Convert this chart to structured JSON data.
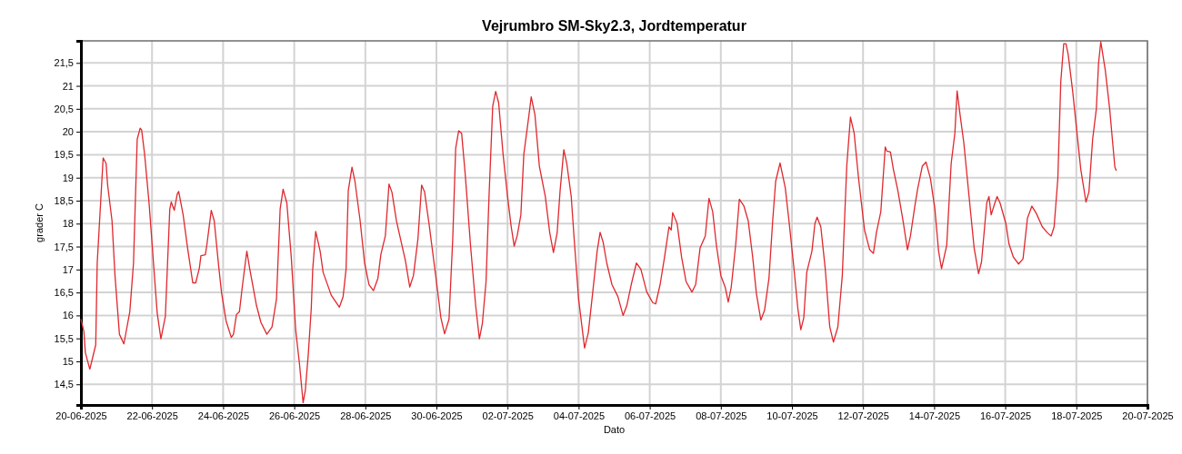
{
  "chart_data": {
    "type": "line",
    "title": "Vejrumbro SM-Sky2.3, Jordtemperatur",
    "xlabel": "Dato",
    "ylabel": "grader C",
    "grid": true,
    "marker": "none",
    "line_style": "solid",
    "xlim": [
      "2025-06-20",
      "2025-07-20"
    ],
    "xticks": [
      {
        "value": "2025-06-20",
        "label": "20-06-2025"
      },
      {
        "value": "2025-06-22",
        "label": "22-06-2025"
      },
      {
        "value": "2025-06-24",
        "label": "24-06-2025"
      },
      {
        "value": "2025-06-26",
        "label": "26-06-2025"
      },
      {
        "value": "2025-06-28",
        "label": "28-06-2025"
      },
      {
        "value": "2025-06-30",
        "label": "30-06-2025"
      },
      {
        "value": "2025-07-02",
        "label": "02-07-2025"
      },
      {
        "value": "2025-07-04",
        "label": "04-07-2025"
      },
      {
        "value": "2025-07-06",
        "label": "06-07-2025"
      },
      {
        "value": "2025-07-08",
        "label": "08-07-2025"
      },
      {
        "value": "2025-07-10",
        "label": "10-07-2025"
      },
      {
        "value": "2025-07-12",
        "label": "12-07-2025"
      },
      {
        "value": "2025-07-14",
        "label": "14-07-2025"
      },
      {
        "value": "2025-07-16",
        "label": "16-07-2025"
      },
      {
        "value": "2025-07-18",
        "label": "18-07-2025"
      },
      {
        "value": "2025-07-20",
        "label": "20-07-2025"
      }
    ],
    "ylim": [
      14.05,
      21.98
    ],
    "yticks": [
      {
        "value": 14.5,
        "label": "14,5"
      },
      15,
      {
        "value": 15.5,
        "label": "15,5"
      },
      16,
      {
        "value": 16.5,
        "label": "16,5"
      },
      17,
      {
        "value": 17.5,
        "label": "17,5"
      },
      18,
      {
        "value": 18.5,
        "label": "18,5"
      },
      19,
      {
        "value": 19.5,
        "label": "19,5"
      },
      20,
      {
        "value": 20.5,
        "label": "20,5"
      },
      21,
      {
        "value": 21.5,
        "label": "21,5"
      }
    ],
    "series": [
      {
        "color": "#e0282e",
        "x": [
          "2025-06-20T00:00",
          "2025-06-20T02:00",
          "2025-06-20T03:00",
          "2025-06-20T06:00",
          "2025-06-20T07:00",
          "2025-06-20T10:00",
          "2025-06-20T11:00",
          "2025-06-20T15:00",
          "2025-06-20T17:00",
          "2025-06-20T18:00",
          "2025-06-20T21:00",
          "2025-06-20T23:00",
          "2025-06-21T02:00",
          "2025-06-21T05:00",
          "2025-06-21T09:00",
          "2025-06-21T11:30",
          "2025-06-21T14:00",
          "2025-06-21T16:00",
          "2025-06-21T17:00",
          "2025-06-21T19:00",
          "2025-06-21T22:00",
          "2025-06-22T01:00",
          "2025-06-22T03:30",
          "2025-06-22T06:00",
          "2025-06-22T09:00",
          "2025-06-22T12:00",
          "2025-06-22T13:00",
          "2025-06-22T15:00",
          "2025-06-22T17:00",
          "2025-06-22T18:00",
          "2025-06-22T21:00",
          "2025-06-23T00:00",
          "2025-06-23T03:30",
          "2025-06-23T05:30",
          "2025-06-23T08:00",
          "2025-06-23T09:00",
          "2025-06-23T12:00",
          "2025-06-23T13:00",
          "2025-06-23T16:00",
          "2025-06-23T18:00",
          "2025-06-23T21:00",
          "2025-06-23T23:00",
          "2025-06-24T02:00",
          "2025-06-24T05:30",
          "2025-06-24T07:00",
          "2025-06-24T09:00",
          "2025-06-24T11:00",
          "2025-06-24T13:00",
          "2025-06-24T16:00",
          "2025-06-24T18:00",
          "2025-06-24T22:30",
          "2025-06-25T01:30",
          "2025-06-25T05:30",
          "2025-06-25T09:00",
          "2025-06-25T12:00",
          "2025-06-25T14:30",
          "2025-06-25T16:30",
          "2025-06-25T19:00",
          "2025-06-25T22:00",
          "2025-06-26T01:00",
          "2025-06-26T03:30",
          "2025-06-26T06:00",
          "2025-06-26T07:30",
          "2025-06-26T09:30",
          "2025-06-26T11:30",
          "2025-06-26T12:30",
          "2025-06-26T14:30",
          "2025-06-26T17:30",
          "2025-06-26T19:30",
          "2025-06-27T01:00",
          "2025-06-27T06:30",
          "2025-06-27T09:00",
          "2025-06-27T11:00",
          "2025-06-27T12:30",
          "2025-06-27T15:00",
          "2025-06-27T17:00",
          "2025-06-27T20:30",
          "2025-06-27T23:30",
          "2025-06-28T02:30",
          "2025-06-28T05:30",
          "2025-06-28T08:30",
          "2025-06-28T10:30",
          "2025-06-28T13:30",
          "2025-06-28T16:00",
          "2025-06-28T18:00",
          "2025-06-28T21:00",
          "2025-06-29T03:00",
          "2025-06-29T06:00",
          "2025-06-29T08:30",
          "2025-06-29T11:30",
          "2025-06-29T14:00",
          "2025-06-29T16:00",
          "2025-06-29T19:00",
          "2025-06-30T00:00",
          "2025-06-30T03:00",
          "2025-06-30T05:30",
          "2025-06-30T08:30",
          "2025-06-30T11:00",
          "2025-06-30T13:00",
          "2025-06-30T15:00",
          "2025-06-30T17:00",
          "2025-06-30T19:30",
          "2025-06-30T23:00",
          "2025-07-01T02:30",
          "2025-07-01T05:00",
          "2025-07-01T07:00",
          "2025-07-01T09:30",
          "2025-07-01T11:30",
          "2025-07-01T14:00",
          "2025-07-01T16:00",
          "2025-07-01T18:00",
          "2025-07-01T21:00",
          "2025-07-02T00:00",
          "2025-07-02T02:30",
          "2025-07-02T04:30",
          "2025-07-02T06:30",
          "2025-07-02T09:00",
          "2025-07-02T11:00",
          "2025-07-02T14:30",
          "2025-07-02T16:00",
          "2025-07-02T18:30",
          "2025-07-02T21:30",
          "2025-07-03T01:30",
          "2025-07-03T04:30",
          "2025-07-03T07:00",
          "2025-07-03T09:30",
          "2025-07-03T11:30",
          "2025-07-03T14:00",
          "2025-07-03T16:00",
          "2025-07-03T19:00",
          "2025-07-03T21:00",
          "2025-07-04T00:00",
          "2025-07-04T02:30",
          "2025-07-04T04:00",
          "2025-07-04T06:30",
          "2025-07-04T09:00",
          "2025-07-04T12:30",
          "2025-07-04T14:30",
          "2025-07-04T16:30",
          "2025-07-04T19:00",
          "2025-07-04T22:30",
          "2025-07-05T02:30",
          "2025-07-05T06:00",
          "2025-07-05T08:30",
          "2025-07-05T11:30",
          "2025-07-05T15:00",
          "2025-07-05T18:00",
          "2025-07-05T22:00",
          "2025-07-06T02:00",
          "2025-07-06T04:00",
          "2025-07-06T07:00",
          "2025-07-06T10:00",
          "2025-07-06T13:00",
          "2025-07-06T14:30",
          "2025-07-06T15:30",
          "2025-07-06T18:30",
          "2025-07-06T21:30",
          "2025-07-07T00:30",
          "2025-07-07T04:30",
          "2025-07-07T07:00",
          "2025-07-07T10:00",
          "2025-07-07T13:30",
          "2025-07-07T16:00",
          "2025-07-07T18:30",
          "2025-07-07T21:00",
          "2025-07-08T00:00",
          "2025-07-08T03:00",
          "2025-07-08T05:00",
          "2025-07-08T07:00",
          "2025-07-08T10:00",
          "2025-07-08T12:30",
          "2025-07-08T15:30",
          "2025-07-08T18:30",
          "2025-07-08T21:30",
          "2025-07-09T00:00",
          "2025-07-09T03:00",
          "2025-07-09T05:30",
          "2025-07-09T08:30",
          "2025-07-09T11:00",
          "2025-07-09T13:00",
          "2025-07-09T16:00",
          "2025-07-09T19:30",
          "2025-07-09T22:00",
          "2025-07-10T01:00",
          "2025-07-10T04:00",
          "2025-07-10T06:00",
          "2025-07-10T08:00",
          "2025-07-10T10:00",
          "2025-07-10T13:30",
          "2025-07-10T15:30",
          "2025-07-10T17:00",
          "2025-07-10T19:30",
          "2025-07-10T22:30",
          "2025-07-11T01:30",
          "2025-07-11T04:00",
          "2025-07-11T07:00",
          "2025-07-11T10:00",
          "2025-07-11T13:00",
          "2025-07-11T15:30",
          "2025-07-11T18:00",
          "2025-07-11T21:00",
          "2025-07-12T01:00",
          "2025-07-12T04:30",
          "2025-07-12T07:00",
          "2025-07-12T09:00",
          "2025-07-12T12:00",
          "2025-07-12T15:00",
          "2025-07-12T16:00",
          "2025-07-12T18:30",
          "2025-07-12T20:30",
          "2025-07-12T23:30",
          "2025-07-13T03:00",
          "2025-07-13T06:00",
          "2025-07-13T08:00",
          "2025-07-13T11:00",
          "2025-07-13T13:00",
          "2025-07-13T16:00",
          "2025-07-13T18:30",
          "2025-07-13T21:30",
          "2025-07-14T00:30",
          "2025-07-14T03:00",
          "2025-07-14T05:00",
          "2025-07-14T08:30",
          "2025-07-14T11:30",
          "2025-07-14T14:00",
          "2025-07-14T15:30",
          "2025-07-14T17:30",
          "2025-07-14T20:00",
          "2025-07-15T00:00",
          "2025-07-15T03:00",
          "2025-07-15T06:00",
          "2025-07-15T08:00",
          "2025-07-15T11:30",
          "2025-07-15T13:00",
          "2025-07-15T14:30",
          "2025-07-15T17:00",
          "2025-07-15T18:30",
          "2025-07-15T20:30",
          "2025-07-16T00:30",
          "2025-07-16T02:30",
          "2025-07-16T05:30",
          "2025-07-16T09:00",
          "2025-07-16T12:00",
          "2025-07-16T15:00",
          "2025-07-16T18:00",
          "2025-07-16T21:00",
          "2025-07-17T01:00",
          "2025-07-17T04:30",
          "2025-07-17T07:00",
          "2025-07-17T09:00",
          "2025-07-17T11:30",
          "2025-07-17T13:30",
          "2025-07-17T15:30",
          "2025-07-17T17:00",
          "2025-07-17T18:30",
          "2025-07-17T21:30",
          "2025-07-18T03:00",
          "2025-07-18T06:30",
          "2025-07-18T08:30",
          "2025-07-18T11:00",
          "2025-07-18T13:30",
          "2025-07-18T15:00",
          "2025-07-18T16:30",
          "2025-07-18T19:30",
          "2025-07-18T22:30",
          "2025-07-19T00:30",
          "2025-07-19T02:00",
          "2025-07-19T03:00"
        ],
        "values": [
          15.92,
          15.65,
          15.19,
          14.83,
          14.96,
          15.36,
          17.14,
          19.43,
          19.31,
          18.85,
          18.06,
          16.87,
          15.59,
          15.38,
          16.08,
          17.14,
          19.84,
          20.08,
          20.04,
          19.51,
          18.45,
          17.14,
          16.05,
          15.49,
          15.98,
          18.32,
          18.47,
          18.29,
          18.64,
          18.7,
          18.19,
          17.47,
          16.71,
          16.71,
          17.04,
          17.3,
          17.32,
          17.53,
          18.29,
          18.06,
          17.07,
          16.48,
          15.88,
          15.52,
          15.59,
          16.02,
          16.08,
          16.64,
          17.4,
          17.01,
          16.22,
          15.85,
          15.59,
          15.75,
          16.35,
          18.32,
          18.75,
          18.45,
          17.27,
          15.68,
          14.96,
          14.1,
          14.37,
          15.16,
          16.15,
          17.01,
          17.83,
          17.4,
          16.94,
          16.44,
          16.18,
          16.41,
          17.01,
          18.72,
          19.23,
          18.92,
          18.06,
          17.14,
          16.67,
          16.54,
          16.81,
          17.33,
          17.73,
          18.86,
          18.68,
          18.06,
          17.2,
          16.62,
          16.87,
          17.66,
          18.84,
          18.69,
          18.0,
          16.74,
          15.95,
          15.6,
          15.92,
          17.66,
          19.64,
          20.02,
          19.97,
          19.05,
          17.53,
          16.21,
          15.49,
          15.82,
          16.74,
          18.59,
          20.56,
          20.88,
          20.63,
          19.51,
          18.59,
          17.93,
          17.51,
          17.73,
          18.19,
          19.51,
          20.37,
          20.76,
          20.37,
          19.25,
          18.59,
          17.8,
          17.37,
          17.8,
          18.72,
          19.61,
          19.31,
          18.59,
          17.66,
          16.35,
          15.69,
          15.29,
          15.62,
          16.35,
          17.4,
          17.81,
          17.6,
          17.14,
          16.67,
          16.41,
          16.0,
          16.21,
          16.67,
          17.14,
          17.01,
          16.51,
          16.28,
          16.25,
          16.67,
          17.27,
          17.93,
          17.86,
          18.24,
          18.0,
          17.27,
          16.74,
          16.51,
          16.67,
          17.47,
          17.73,
          18.55,
          18.26,
          17.53,
          16.87,
          16.61,
          16.29,
          16.61,
          17.53,
          18.53,
          18.39,
          18.06,
          17.27,
          16.48,
          15.9,
          16.11,
          16.81,
          18.06,
          18.92,
          19.32,
          18.78,
          18.06,
          17.14,
          16.15,
          15.69,
          15.95,
          16.94,
          17.4,
          18.0,
          18.14,
          17.93,
          17.01,
          15.76,
          15.42,
          15.75,
          16.87,
          19.25,
          20.32,
          19.97,
          18.98,
          17.86,
          17.43,
          17.35,
          17.8,
          18.26,
          19.67,
          19.58,
          19.56,
          19.18,
          18.72,
          18.06,
          17.43,
          17.73,
          18.39,
          18.78,
          19.25,
          19.34,
          18.98,
          18.32,
          17.4,
          17.02,
          17.53,
          19.31,
          19.97,
          20.89,
          20.37,
          19.77,
          18.45,
          17.47,
          16.91,
          17.17,
          18.45,
          18.59,
          18.19,
          18.45,
          18.59,
          18.45,
          17.99,
          17.56,
          17.27,
          17.12,
          17.23,
          18.12,
          18.38,
          18.22,
          17.93,
          17.8,
          17.73,
          17.93,
          18.98,
          21.09,
          21.92,
          21.92,
          21.68,
          20.89,
          19.18,
          18.47,
          18.69,
          19.84,
          20.5,
          21.49,
          21.96,
          21.35,
          20.5,
          19.77,
          19.23,
          19.15
        ]
      }
    ]
  }
}
